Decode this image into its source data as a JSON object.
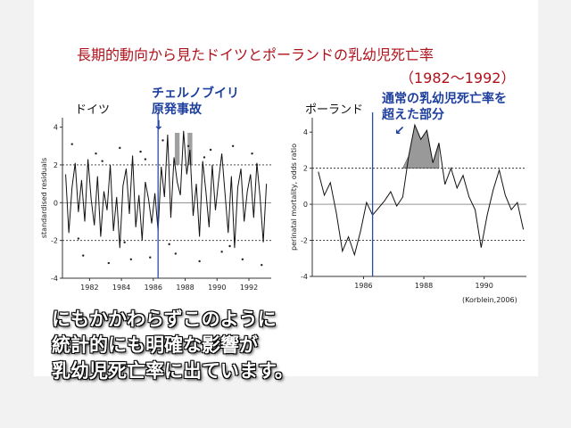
{
  "title": "長期的動向から見たドイツとポーランドの乳幼児死亡率",
  "subtitle": "（1982～1992）",
  "annotations": {
    "chernobyl": [
      "チェルノブイリ",
      "原発事故"
    ],
    "arrow_down": "↓",
    "excess": [
      "通常の乳幼児死亡率を",
      "超えた部分"
    ],
    "arrow_diag": "↙"
  },
  "citation": "(Korblein,2006)",
  "caption": [
    "にもかかわらずこのように",
    "統計的にも明確な影響が",
    "乳幼児死亡率に出ています。"
  ],
  "colors": {
    "title": "#b0121b",
    "annotation": "#1e3f9e",
    "event_line": "#2a4aa8"
  },
  "chart_data": [
    {
      "type": "line",
      "label": "ドイツ",
      "ylabel": "standardised residuals",
      "ylim": [
        -4,
        4.5
      ],
      "xlim": [
        1980.3,
        1993.4
      ],
      "yticks": [
        -4,
        -2,
        0,
        2,
        4
      ],
      "xticks": [
        1982,
        1984,
        1986,
        1988,
        1990,
        1992
      ],
      "reference_lines": [
        2,
        -2
      ],
      "event_x": 1986.3,
      "series": [
        {
          "x": [
            1980.5,
            1980.7,
            1980.9,
            1981.1,
            1981.3,
            1981.5,
            1981.7,
            1981.9,
            1982.1,
            1982.3,
            1982.5,
            1982.7,
            1982.9,
            1983.1,
            1983.3,
            1983.5,
            1983.7,
            1983.9,
            1984.1,
            1984.3,
            1984.5,
            1984.7,
            1984.9,
            1985.1,
            1985.3,
            1985.5,
            1985.7,
            1985.9,
            1986.1,
            1986.3,
            1986.5,
            1986.7,
            1986.9,
            1987.1,
            1987.3,
            1987.5,
            1987.7,
            1987.9,
            1988.1,
            1988.3,
            1988.5,
            1988.7,
            1988.9,
            1989.1,
            1989.3,
            1989.5,
            1989.7,
            1989.9,
            1990.1,
            1990.3,
            1990.5,
            1990.7,
            1990.9,
            1991.1,
            1991.3,
            1991.5,
            1991.7,
            1991.9,
            1992.1,
            1992.3,
            1992.5,
            1992.7,
            1992.9,
            1993.1
          ],
          "y": [
            1.5,
            -1.6,
            0.8,
            2.1,
            -0.5,
            1.2,
            -1.0,
            2.3,
            0.2,
            -1.2,
            1.4,
            -1.8,
            0.6,
            -0.4,
            2.0,
            -1.5,
            0.3,
            -2.4,
            0.9,
            1.8,
            -0.6,
            2.5,
            -1.3,
            0.4,
            -2.0,
            1.1,
            0.2,
            -1.1,
            0.5,
            -1.5,
            1.9,
            0.3,
            3.6,
            -0.8,
            2.4,
            1.1,
            0.4,
            3.8,
            1.5,
            2.8,
            -0.7,
            1.0,
            -1.8,
            2.2,
            0.6,
            -1.3,
            2.0,
            -0.4,
            1.2,
            2.6,
            0.5,
            -1.6,
            1.4,
            -2.4,
            0.8,
            1.8,
            -1.0,
            0.6,
            1.5,
            -0.8,
            2.1,
            0.3,
            -2.1,
            1.0
          ]
        }
      ],
      "scatter_points": {
        "x": [
          1980.9,
          1981.6,
          1982.4,
          1983.2,
          1983.9,
          1984.6,
          1985.2,
          1985.8,
          1986.6,
          1987.4,
          1988.2,
          1988.9,
          1989.6,
          1990.3,
          1991.0,
          1991.6,
          1992.2,
          1992.8,
          1981.3,
          1982.8,
          1984.2,
          1985.5,
          1987.0,
          1989.2,
          1990.8,
          1992.5
        ],
        "y": [
          3.1,
          -2.8,
          2.6,
          -3.2,
          2.9,
          -3.0,
          2.7,
          -2.9,
          3.3,
          -2.7,
          3.0,
          -3.1,
          2.8,
          -2.6,
          3.0,
          -3.0,
          2.6,
          -3.3,
          -1.9,
          2.2,
          -2.1,
          2.3,
          -2.2,
          2.4,
          -2.3,
          2.0
        ]
      },
      "shaded_peaks_x": [
        1987.5,
        1988.3
      ]
    },
    {
      "type": "line",
      "label": "ポーランド",
      "ylabel": "perinatal mortality, odds ratio",
      "ylim": [
        -4,
        4.8
      ],
      "xlim": [
        1984.3,
        1991.4
      ],
      "yticks": [
        -4,
        -2,
        0,
        2,
        4
      ],
      "xticks": [
        1986,
        1988,
        1990
      ],
      "reference_lines": [
        2,
        -2
      ],
      "event_x": 1986.3,
      "series": [
        {
          "x": [
            1984.5,
            1984.7,
            1984.9,
            1985.1,
            1985.3,
            1985.5,
            1985.7,
            1985.9,
            1986.1,
            1986.3,
            1986.5,
            1986.7,
            1986.9,
            1987.1,
            1987.3,
            1987.5,
            1987.7,
            1987.9,
            1988.1,
            1988.3,
            1988.5,
            1988.7,
            1988.9,
            1989.1,
            1989.3,
            1989.5,
            1989.7,
            1989.9,
            1990.1,
            1990.3,
            1990.5,
            1990.7,
            1990.9,
            1991.1,
            1991.3
          ],
          "y": [
            1.8,
            0.5,
            1.2,
            -0.5,
            -2.6,
            -1.8,
            -2.8,
            -1.5,
            0.1,
            -0.6,
            -0.2,
            0.2,
            0.7,
            -0.1,
            0.4,
            2.7,
            4.4,
            3.6,
            4.1,
            2.3,
            3.4,
            1.1,
            2.0,
            0.9,
            1.6,
            0.4,
            -0.3,
            -2.4,
            -0.6,
            0.8,
            1.9,
            0.5,
            -0.3,
            0.1,
            -1.4
          ]
        }
      ],
      "shaded_x_range": [
        1987.3,
        1988.6
      ]
    }
  ]
}
